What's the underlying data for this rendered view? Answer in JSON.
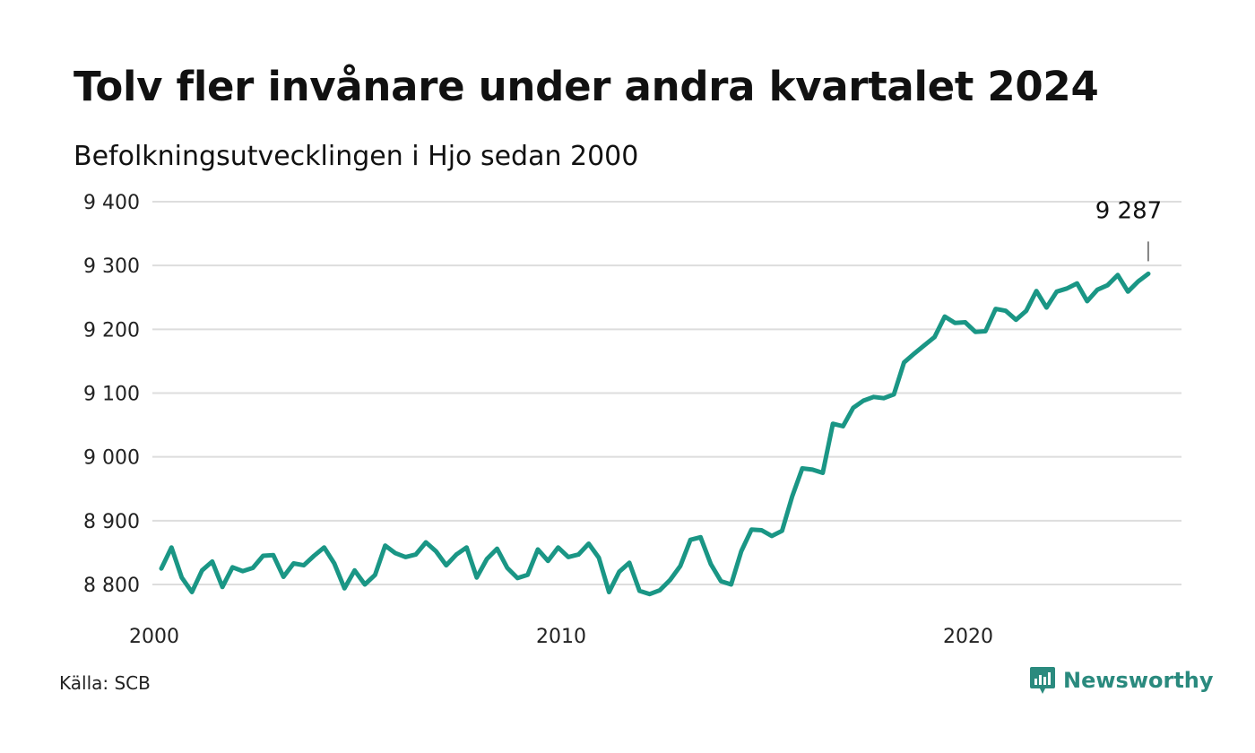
{
  "title": "Tolv fler invånare under andra kvartalet 2024",
  "subtitle": "Befolkningsutvecklingen i Hjo sedan 2000",
  "source": "Källa: SCB",
  "brand": "Newsworthy",
  "colors": {
    "line": "#1a9685",
    "grid": "#dddddd",
    "brand": "#2a8a7e"
  },
  "chart_data": {
    "type": "line",
    "y_ticks": [
      "9 400",
      "9 300",
      "9 200",
      "9 100",
      "9 000",
      "8 900",
      "8 800"
    ],
    "x_ticks": [
      "2000",
      "2010",
      "2020"
    ],
    "ylim": [
      8800,
      9400
    ],
    "x_range": [
      "2000 Q1",
      "2024 Q2"
    ],
    "annotation": {
      "label": "9 287",
      "at": "2024 Q2",
      "value": 9287
    },
    "series": [
      {
        "quarters_from": "2000 Q1",
        "values": [
          8825,
          8858,
          8811,
          8788,
          8822,
          8836,
          8796,
          8827,
          8821,
          8826,
          8845,
          8846,
          8812,
          8833,
          8830,
          8845,
          8858,
          8833,
          8794,
          8822,
          8800,
          8815,
          8861,
          8849,
          8843,
          8847,
          8866,
          8852,
          8830,
          8847,
          8858,
          8811,
          8840,
          8856,
          8826,
          8810,
          8815,
          8855,
          8837,
          8858,
          8843,
          8847,
          8864,
          8842,
          8788,
          8820,
          8834,
          8790,
          8785,
          8791,
          8807,
          8829,
          8870,
          8874,
          8832,
          8805,
          8800,
          8852,
          8886,
          8885,
          8876,
          8884,
          8938,
          8982,
          8980,
          8975,
          9052,
          9048,
          9077,
          9088,
          9094,
          9092,
          9098,
          9148,
          9162,
          9175,
          9188,
          9220,
          9210,
          9211,
          9196,
          9197,
          9232,
          9229,
          9215,
          9229,
          9260,
          9234,
          9259,
          9264,
          9272,
          9244,
          9262,
          9269,
          9285,
          9259,
          9275,
          9287
        ]
      }
    ]
  }
}
